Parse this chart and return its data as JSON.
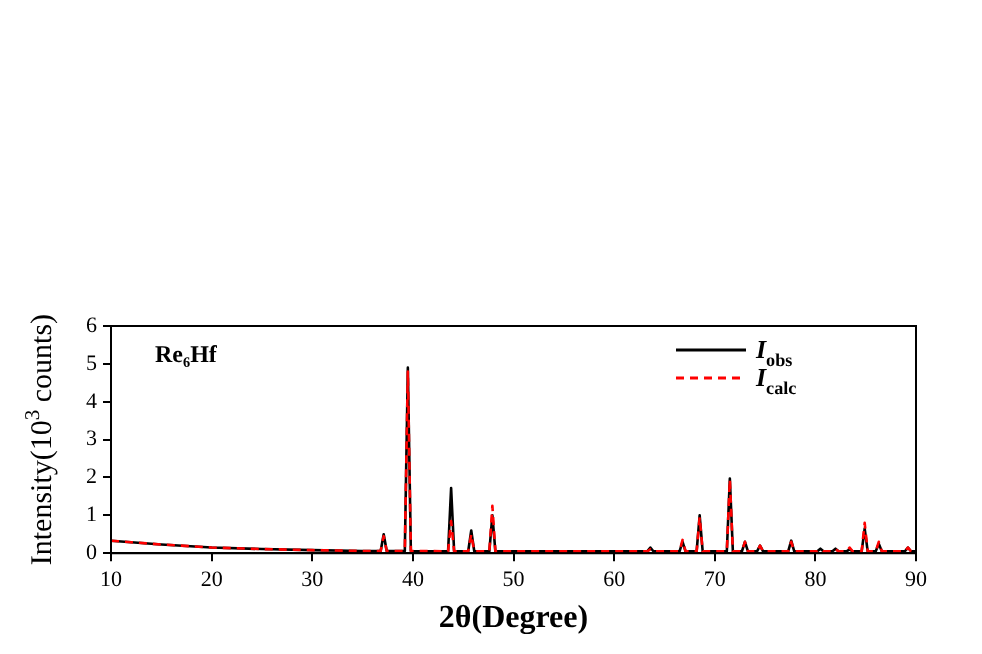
{
  "chart_data": {
    "type": "line",
    "xlabel": "2θ(Degree)",
    "ylabel": "Intensity(10$^{3}$ counts)",
    "annotations": [
      "Re₆Hf"
    ],
    "x": [
      10,
      12,
      15,
      20,
      25,
      30,
      35,
      36.8,
      37.1,
      37.4,
      39.2,
      39.5,
      39.8,
      43.5,
      43.8,
      44.1,
      45.5,
      45.8,
      46.1,
      47.6,
      47.9,
      48.2,
      55,
      63.3,
      63.6,
      63.9,
      66.5,
      66.8,
      67.1,
      68.2,
      68.5,
      68.8,
      71.2,
      71.5,
      71.8,
      72.7,
      73.0,
      73.3,
      74.2,
      74.5,
      74.8,
      77.3,
      77.6,
      77.9,
      80.2,
      80.5,
      80.8,
      81.7,
      82.0,
      82.3,
      83.1,
      83.4,
      83.7,
      84.6,
      84.9,
      85.2,
      86.0,
      86.3,
      86.6,
      88.9,
      89.2,
      89.5,
      90
    ],
    "series": [
      {
        "name": "I$_{obs}$",
        "color": "#000000",
        "line_style": "solid",
        "values": [
          0.33,
          0.29,
          0.23,
          0.15,
          0.11,
          0.08,
          0.06,
          0.06,
          0.5,
          0.06,
          0.06,
          4.9,
          0.06,
          0.05,
          1.72,
          0.05,
          0.05,
          0.6,
          0.05,
          0.05,
          1.0,
          0.05,
          0.05,
          0.05,
          0.15,
          0.05,
          0.05,
          0.3,
          0.05,
          0.05,
          1.0,
          0.05,
          0.05,
          1.97,
          0.05,
          0.05,
          0.3,
          0.05,
          0.05,
          0.2,
          0.05,
          0.05,
          0.33,
          0.05,
          0.05,
          0.12,
          0.05,
          0.05,
          0.12,
          0.05,
          0.05,
          0.1,
          0.05,
          0.05,
          0.65,
          0.05,
          0.05,
          0.25,
          0.05,
          0.05,
          0.15,
          0.05,
          0.05
        ]
      },
      {
        "name": "I$_{calc}$",
        "color": "#ff0000",
        "line_style": "dashed",
        "values": [
          0.33,
          0.29,
          0.23,
          0.15,
          0.11,
          0.08,
          0.06,
          0.06,
          0.45,
          0.06,
          0.06,
          4.8,
          0.06,
          0.05,
          0.85,
          0.05,
          0.05,
          0.5,
          0.05,
          0.05,
          1.25,
          0.05,
          0.05,
          0.05,
          0.1,
          0.05,
          0.05,
          0.35,
          0.05,
          0.05,
          0.95,
          0.05,
          0.05,
          1.95,
          0.05,
          0.05,
          0.3,
          0.05,
          0.05,
          0.2,
          0.05,
          0.05,
          0.3,
          0.05,
          0.05,
          0.1,
          0.05,
          0.05,
          0.1,
          0.05,
          0.05,
          0.15,
          0.05,
          0.05,
          0.8,
          0.05,
          0.05,
          0.3,
          0.05,
          0.05,
          0.15,
          0.05,
          0.05
        ]
      }
    ],
    "xlim": [
      10,
      90
    ],
    "xticks": [
      10,
      20,
      30,
      40,
      50,
      60,
      70,
      80,
      90
    ],
    "ylim": [
      0,
      6
    ],
    "yticks": [
      0,
      1,
      2,
      3,
      4,
      5,
      6
    ],
    "grid": false,
    "legend": "top right",
    "marker": "none"
  }
}
